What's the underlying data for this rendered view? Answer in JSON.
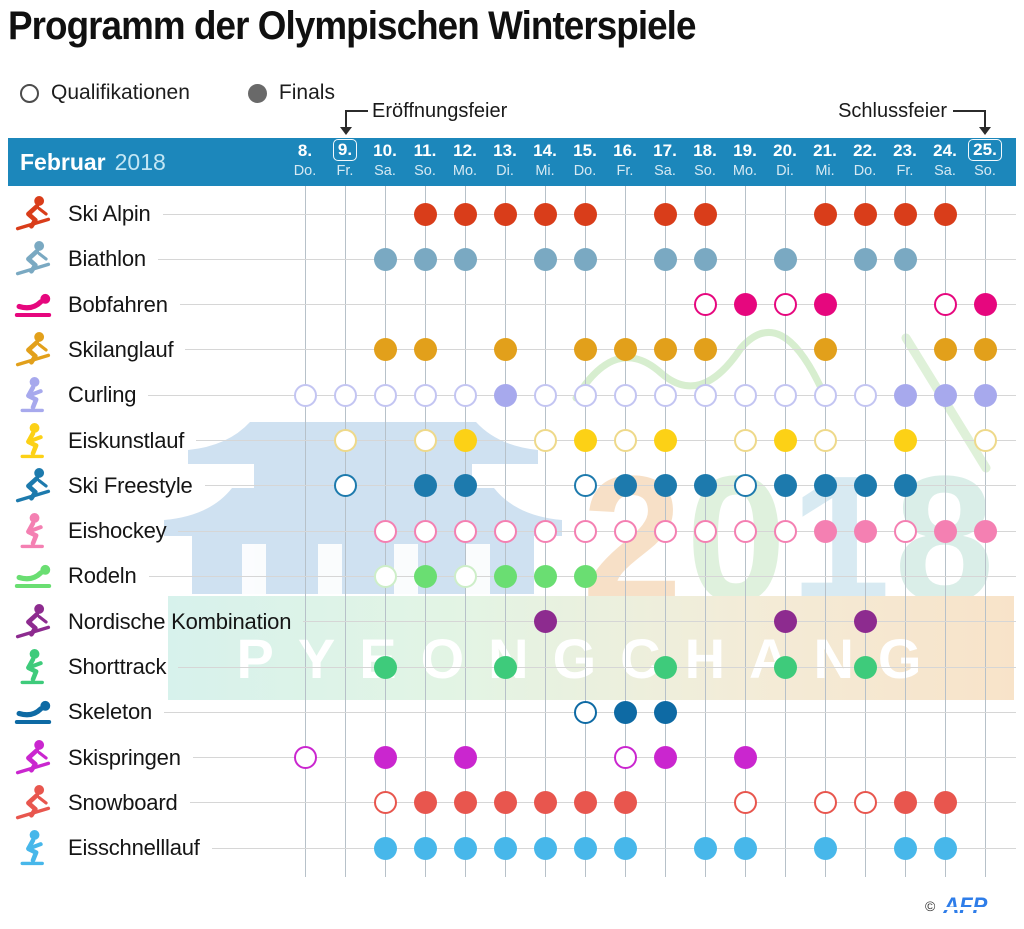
{
  "title": "Programm der Olympischen Winterspiele",
  "legend": {
    "qualifications_label": "Qualifikationen",
    "finals_label": "Finals"
  },
  "annotations": {
    "opening_label": "Eröffnungsfeier",
    "closing_label": "Schlussfeier"
  },
  "calendar_header": {
    "month": "Februar",
    "year": "2018"
  },
  "watermark": {
    "city": "PYEONGCHANG",
    "year_digits": [
      "2",
      "0",
      "1",
      "8"
    ],
    "digit_colors": [
      "#f6d9ba",
      "#d8eed5",
      "#cfe6f0",
      "#d2ebe3"
    ]
  },
  "credit": {
    "copyright": "©",
    "agency": "AFP"
  },
  "colors": {
    "header_band": "#1c87bb",
    "legend_final_dot": "#696969",
    "vertical_grid": "#b7c1c9",
    "horizontal_grid": "#d6d6d6"
  },
  "chart_data": {
    "type": "table",
    "title": "Programm der Olympischen Winterspiele",
    "x_axis_label": "Februar 2018",
    "marker_semantics": {
      "open_circle": "Qualifikationen",
      "filled_circle": "Finals"
    },
    "columns": [
      {
        "day": "8.",
        "weekday": "Do.",
        "boxed": false
      },
      {
        "day": "9.",
        "weekday": "Fr.",
        "boxed": true,
        "ceremony": "Eröffnungsfeier"
      },
      {
        "day": "10.",
        "weekday": "Sa.",
        "boxed": false
      },
      {
        "day": "11.",
        "weekday": "So.",
        "boxed": false
      },
      {
        "day": "12.",
        "weekday": "Mo.",
        "boxed": false
      },
      {
        "day": "13.",
        "weekday": "Di.",
        "boxed": false
      },
      {
        "day": "14.",
        "weekday": "Mi.",
        "boxed": false
      },
      {
        "day": "15.",
        "weekday": "Do.",
        "boxed": false
      },
      {
        "day": "16.",
        "weekday": "Fr.",
        "boxed": false
      },
      {
        "day": "17.",
        "weekday": "Sa.",
        "boxed": false
      },
      {
        "day": "18.",
        "weekday": "So.",
        "boxed": false
      },
      {
        "day": "19.",
        "weekday": "Mo.",
        "boxed": false
      },
      {
        "day": "20.",
        "weekday": "Di.",
        "boxed": false
      },
      {
        "day": "21.",
        "weekday": "Mi.",
        "boxed": false
      },
      {
        "day": "22.",
        "weekday": "Do.",
        "boxed": false
      },
      {
        "day": "23.",
        "weekday": "Fr.",
        "boxed": false
      },
      {
        "day": "24.",
        "weekday": "Sa.",
        "boxed": false
      },
      {
        "day": "25.",
        "weekday": "So.",
        "boxed": true,
        "ceremony": "Schlussfeier"
      }
    ],
    "rows": [
      {
        "sport": "Ski Alpin",
        "icon": "skier",
        "color": "#d93d1a",
        "finals": [
          11,
          12,
          13,
          14,
          15,
          17,
          18,
          21,
          22,
          23,
          24
        ],
        "quals": []
      },
      {
        "sport": "Biathlon",
        "icon": "skier",
        "color": "#7aa9c2",
        "finals": [
          10,
          11,
          12,
          14,
          15,
          17,
          18,
          20,
          22,
          23
        ],
        "quals": []
      },
      {
        "sport": "Bobfahren",
        "icon": "sled",
        "color": "#e6077e",
        "finals": [
          19,
          21,
          25
        ],
        "quals": [
          18,
          20,
          24
        ]
      },
      {
        "sport": "Skilanglauf",
        "icon": "skier",
        "color": "#e2a01b",
        "finals": [
          10,
          11,
          13,
          15,
          16,
          17,
          18,
          21,
          24,
          25
        ],
        "quals": []
      },
      {
        "sport": "Curling",
        "icon": "skater",
        "color": "#a7a9ed",
        "open_border": "#c3c5f2",
        "finals": [
          13,
          23,
          24,
          25
        ],
        "quals": [
          8,
          9,
          10,
          11,
          12,
          14,
          15,
          16,
          17,
          18,
          19,
          20,
          21,
          22
        ]
      },
      {
        "sport": "Eiskunstlauf",
        "icon": "skater",
        "color": "#fcd116",
        "open_border": "#eed98a",
        "finals": [
          12,
          15,
          17,
          20,
          23
        ],
        "quals": [
          9,
          11,
          14,
          16,
          19,
          21,
          25
        ]
      },
      {
        "sport": "Ski Freestyle",
        "icon": "skier",
        "color": "#1d7aad",
        "finals": [
          11,
          12,
          16,
          17,
          18,
          20,
          21,
          22,
          23
        ],
        "quals": [
          9,
          15,
          19
        ]
      },
      {
        "sport": "Eishockey",
        "icon": "skater",
        "color": "#f480b2",
        "finals": [
          21,
          22,
          24,
          25
        ],
        "quals": [
          10,
          11,
          12,
          13,
          14,
          15,
          16,
          17,
          18,
          19,
          20,
          23
        ]
      },
      {
        "sport": "Rodeln",
        "icon": "sled",
        "color": "#6ade72",
        "open_border": "#cdeec8",
        "finals": [
          11,
          13,
          14,
          15
        ],
        "quals": [
          10,
          12
        ]
      },
      {
        "sport": "Nordische Kombination",
        "icon": "skier",
        "color": "#8d2b8f",
        "finals": [
          14,
          20,
          22
        ],
        "quals": []
      },
      {
        "sport": "Shorttrack",
        "icon": "skater",
        "color": "#3ecb7b",
        "finals": [
          10,
          13,
          17,
          20,
          22
        ],
        "quals": []
      },
      {
        "sport": "Skeleton",
        "icon": "sled",
        "color": "#0e6aa4",
        "finals": [
          16,
          17
        ],
        "quals": [
          15
        ]
      },
      {
        "sport": "Skispringen",
        "icon": "skier",
        "color": "#ca26cf",
        "finals": [
          10,
          12,
          17,
          19
        ],
        "quals": [
          8,
          16
        ]
      },
      {
        "sport": "Snowboard",
        "icon": "skier",
        "color": "#e8564e",
        "finals": [
          11,
          12,
          13,
          14,
          15,
          16,
          23,
          24
        ],
        "quals": [
          10,
          19,
          21,
          22
        ]
      },
      {
        "sport": "Eisschnelllauf",
        "icon": "skater",
        "color": "#47b7ea",
        "finals": [
          10,
          11,
          12,
          13,
          14,
          15,
          16,
          18,
          19,
          21,
          23,
          24
        ],
        "quals": []
      }
    ]
  }
}
